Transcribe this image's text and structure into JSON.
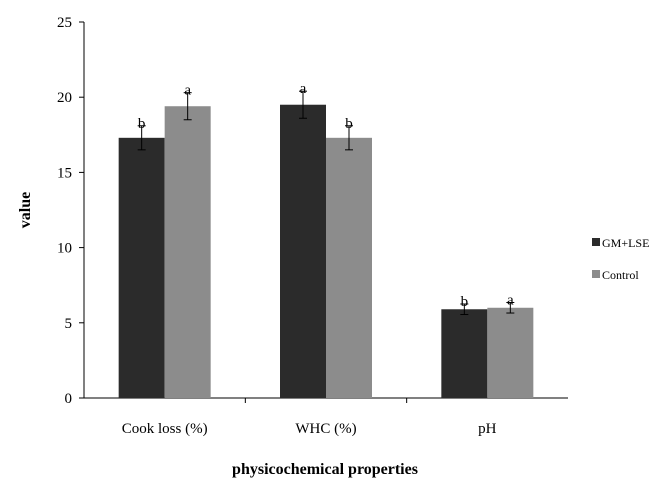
{
  "chart_data": {
    "type": "bar",
    "xlabel": "physicochemical properties",
    "ylabel": "value",
    "categories": [
      "Cook loss (%)",
      "WHC (%)",
      "pH"
    ],
    "ylim": [
      0,
      25
    ],
    "yticks": [
      0,
      5,
      10,
      15,
      20,
      25
    ],
    "grid": false,
    "legend": "right",
    "series": [
      {
        "name": "GM+LSE",
        "color": "#2b2b2b",
        "values": [
          17.3,
          19.5,
          5.9
        ],
        "errors": [
          0.8,
          0.9,
          0.35
        ],
        "labels": [
          "b",
          "a",
          "b"
        ]
      },
      {
        "name": "Control",
        "color": "#8c8c8c",
        "values": [
          19.4,
          17.3,
          6.0
        ],
        "errors": [
          0.9,
          0.8,
          0.35
        ],
        "labels": [
          "a",
          "b",
          "a"
        ]
      }
    ]
  }
}
